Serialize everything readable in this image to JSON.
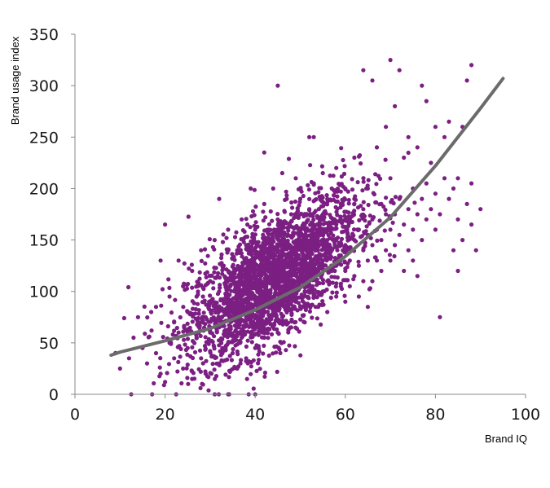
{
  "chart_data": {
    "type": "scatter",
    "title": "",
    "xlabel": "Brand IQ",
    "ylabel": "Brand usage index",
    "xlim": [
      0,
      100
    ],
    "ylim": [
      0,
      350
    ],
    "x_ticks": [
      "0",
      "20",
      "40",
      "60",
      "80",
      "100"
    ],
    "y_ticks": [
      "0",
      "50",
      "100",
      "150",
      "200",
      "250",
      "300",
      "350"
    ],
    "grid": false,
    "legend": "none",
    "colors": {
      "points": "#7B1F82",
      "trendline": "#6b6b6b",
      "axis": "#888888"
    },
    "trendline": {
      "type": "exponential",
      "x": [
        8,
        10,
        20,
        30,
        40,
        50,
        60,
        70,
        80,
        90,
        95
      ],
      "y": [
        38,
        41,
        52,
        64,
        82,
        104,
        134,
        172,
        222,
        278,
        307
      ]
    },
    "series": [
      {
        "values": [
          [
            9,
            40
          ],
          [
            10,
            25
          ],
          [
            12,
            35
          ],
          [
            13,
            55
          ],
          [
            14,
            75
          ],
          [
            15,
            45
          ],
          [
            16,
            30
          ],
          [
            17,
            62
          ],
          [
            18,
            40
          ],
          [
            18,
            85
          ],
          [
            19,
            20
          ],
          [
            19,
            130
          ],
          [
            20,
            12
          ],
          [
            20,
            165
          ],
          [
            21,
            50
          ],
          [
            21,
            95
          ],
          [
            22,
            35
          ],
          [
            22,
            70
          ],
          [
            23,
            60
          ],
          [
            23,
            130
          ],
          [
            24,
            25
          ],
          [
            24,
            105
          ],
          [
            25,
            45
          ],
          [
            25,
            80
          ],
          [
            26,
            15
          ],
          [
            26,
            120
          ],
          [
            27,
            55
          ],
          [
            27,
            95
          ],
          [
            28,
            35
          ],
          [
            28,
            140
          ],
          [
            29,
            75
          ],
          [
            29,
            20
          ],
          [
            30,
            110
          ],
          [
            30,
            60
          ],
          [
            30,
            42
          ],
          [
            31,
            85
          ],
          [
            31,
            150
          ],
          [
            32,
            30
          ],
          [
            32,
            100
          ],
          [
            32,
            190
          ],
          [
            33,
            70
          ],
          [
            33,
            125
          ],
          [
            34,
            50
          ],
          [
            34,
            95
          ],
          [
            34,
            160
          ],
          [
            35,
            40
          ],
          [
            35,
            115
          ],
          [
            35,
            80
          ],
          [
            36,
            60
          ],
          [
            36,
            140
          ],
          [
            36,
            100
          ],
          [
            36,
            25
          ],
          [
            37,
            90
          ],
          [
            37,
            170
          ],
          [
            37,
            55
          ],
          [
            37,
            120
          ],
          [
            38,
            75
          ],
          [
            38,
            105
          ],
          [
            38,
            35
          ],
          [
            38,
            145
          ],
          [
            39,
            85
          ],
          [
            39,
            60
          ],
          [
            39,
            130
          ],
          [
            39,
            200
          ],
          [
            40,
            95
          ],
          [
            40,
            45
          ],
          [
            40,
            115
          ],
          [
            40,
            160
          ],
          [
            40,
            0
          ],
          [
            41,
            80
          ],
          [
            41,
            110
          ],
          [
            41,
            138
          ],
          [
            41,
            65
          ],
          [
            42,
            100
          ],
          [
            42,
            150
          ],
          [
            42,
            55
          ],
          [
            42,
            185
          ],
          [
            42,
            235
          ],
          [
            43,
            90
          ],
          [
            43,
            125
          ],
          [
            43,
            70
          ],
          [
            43,
            160
          ],
          [
            44,
            105
          ],
          [
            44,
            140
          ],
          [
            44,
            80
          ],
          [
            44,
            200
          ],
          [
            45,
            300
          ],
          [
            45,
            115
          ],
          [
            45,
            90
          ],
          [
            45,
            170
          ],
          [
            45,
            60
          ],
          [
            46,
            130
          ],
          [
            46,
            100
          ],
          [
            46,
            215
          ],
          [
            46,
            75
          ],
          [
            47,
            110
          ],
          [
            47,
            155
          ],
          [
            47,
            85
          ],
          [
            47,
            190
          ],
          [
            48,
            120
          ],
          [
            48,
            95
          ],
          [
            48,
            175
          ],
          [
            48,
            65
          ],
          [
            49,
            140
          ],
          [
            49,
            105
          ],
          [
            49,
            210
          ],
          [
            50,
            115
          ],
          [
            50,
            150
          ],
          [
            50,
            85
          ],
          [
            50,
            190
          ],
          [
            51,
            125
          ],
          [
            51,
            100
          ],
          [
            51,
            165
          ],
          [
            51,
            70
          ],
          [
            52,
            135
          ],
          [
            52,
            250
          ],
          [
            52,
            110
          ],
          [
            52,
            180
          ],
          [
            53,
            95
          ],
          [
            53,
            145
          ],
          [
            53,
            250
          ],
          [
            53,
            205
          ],
          [
            54,
            120
          ],
          [
            54,
            160
          ],
          [
            54,
            85
          ],
          [
            55,
            130
          ],
          [
            55,
            100
          ],
          [
            55,
            175
          ],
          [
            55,
            215
          ],
          [
            56,
            110
          ],
          [
            56,
            150
          ],
          [
            56,
            190
          ],
          [
            56,
            80
          ],
          [
            57,
            140
          ],
          [
            57,
            120
          ],
          [
            57,
            200
          ],
          [
            58,
            125
          ],
          [
            58,
            165
          ],
          [
            58,
            95
          ],
          [
            58,
            220
          ],
          [
            59,
            135
          ],
          [
            59,
            105
          ],
          [
            59,
            185
          ],
          [
            60,
            145
          ],
          [
            60,
            120
          ],
          [
            60,
            200
          ],
          [
            60,
            90
          ],
          [
            61,
            130
          ],
          [
            61,
            170
          ],
          [
            61,
            105
          ],
          [
            62,
            150
          ],
          [
            62,
            115
          ],
          [
            62,
            190
          ],
          [
            62,
            230
          ],
          [
            63,
            160
          ],
          [
            63,
            125
          ],
          [
            63,
            95
          ],
          [
            64,
            140
          ],
          [
            64,
            180
          ],
          [
            64,
            110
          ],
          [
            64,
            315
          ],
          [
            65,
            155
          ],
          [
            65,
            130
          ],
          [
            65,
            200
          ],
          [
            65,
            85
          ],
          [
            66,
            145
          ],
          [
            66,
            170
          ],
          [
            66,
            305
          ],
          [
            66,
            110
          ],
          [
            67,
            160
          ],
          [
            67,
            130
          ],
          [
            67,
            240
          ],
          [
            68,
            150
          ],
          [
            68,
            185
          ],
          [
            68,
            120
          ],
          [
            69,
            175
          ],
          [
            69,
            140
          ],
          [
            69,
            260
          ],
          [
            70,
            325
          ],
          [
            70,
            160
          ],
          [
            70,
            130
          ],
          [
            70,
            210
          ],
          [
            71,
            280
          ],
          [
            71,
            175
          ],
          [
            71,
            145
          ],
          [
            72,
            315
          ],
          [
            72,
            190
          ],
          [
            72,
            155
          ],
          [
            73,
            165
          ],
          [
            73,
            230
          ],
          [
            73,
            120
          ],
          [
            74,
            180
          ],
          [
            74,
            250
          ],
          [
            74,
            140
          ],
          [
            75,
            160
          ],
          [
            75,
            200
          ],
          [
            75,
            130
          ],
          [
            76,
            175
          ],
          [
            76,
            240
          ],
          [
            76,
            115
          ],
          [
            77,
            300
          ],
          [
            77,
            190
          ],
          [
            77,
            150
          ],
          [
            78,
            285
          ],
          [
            78,
            205
          ],
          [
            78,
            170
          ],
          [
            79,
            180
          ],
          [
            79,
            225
          ],
          [
            80,
            160
          ],
          [
            80,
            195
          ],
          [
            80,
            260
          ],
          [
            81,
            75
          ],
          [
            81,
            175
          ],
          [
            82,
            250
          ],
          [
            82,
            210
          ],
          [
            83,
            190
          ],
          [
            83,
            265
          ],
          [
            84,
            140
          ],
          [
            84,
            200
          ],
          [
            85,
            170
          ],
          [
            85,
            210
          ],
          [
            86,
            150
          ],
          [
            86,
            260
          ],
          [
            87,
            305
          ],
          [
            87,
            185
          ],
          [
            88,
            320
          ],
          [
            88,
            205
          ],
          [
            88,
            165
          ],
          [
            89,
            140
          ],
          [
            90,
            180
          ],
          [
            85,
            120
          ]
        ]
      }
    ]
  }
}
